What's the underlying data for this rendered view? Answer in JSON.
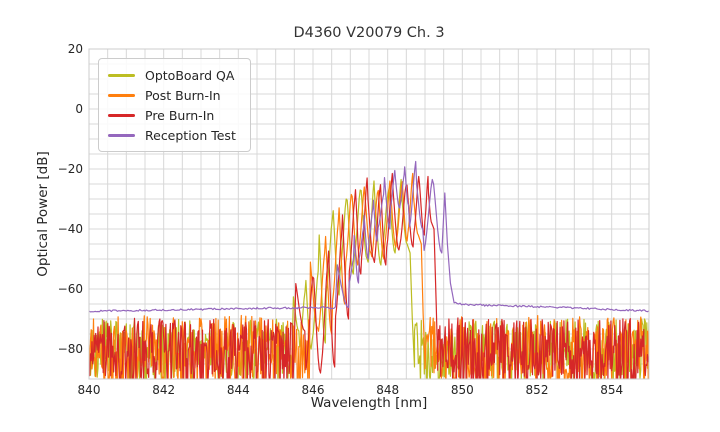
{
  "chart_data": {
    "type": "line",
    "title": "D4360 V20079 Ch. 3",
    "xlabel": "Wavelength [nm]",
    "ylabel": "Optical Power [dB]",
    "xlim": [
      840,
      855
    ],
    "ylim": [
      -90,
      20
    ],
    "xticks": [
      840,
      842,
      844,
      846,
      848,
      850,
      852,
      854
    ],
    "yticks": [
      20,
      0,
      -20,
      -40,
      -60,
      -80
    ],
    "x_minor_step": 0.5,
    "y_minor_step": 5,
    "grid": true,
    "grid_color": "#d8d8d8",
    "spine_color": "#cccccc",
    "legend_position": "upper left",
    "series": [
      {
        "name": "OptoBoard QA",
        "color": "#bcbd22",
        "left_noise": [
          840,
          845.45
        ],
        "right_noise": [
          848.72,
          855
        ],
        "noise_top": -70,
        "noise_spread": 22,
        "rise_from": [
          845.45,
          -74
        ],
        "peaks": [
          [
            845.62,
            -61
          ],
          [
            845.95,
            -54
          ],
          [
            846.33,
            -37
          ],
          [
            846.7,
            -30
          ],
          [
            847.08,
            -27
          ],
          [
            847.45,
            -24
          ],
          [
            847.82,
            -28
          ],
          [
            848.2,
            -23.5
          ],
          [
            848.52,
            -28
          ]
        ],
        "valleys": [
          -80,
          -78,
          -62,
          -55,
          -50,
          -52,
          -48,
          -45
        ],
        "fall_to": [
          [
            848.6,
            -48
          ],
          [
            848.66,
            -70
          ],
          [
            848.72,
            -86
          ]
        ]
      },
      {
        "name": "Post Burn-In",
        "color": "#ff7f0e",
        "left_noise": [
          840,
          845.9
        ],
        "right_noise": [
          849.0,
          855
        ],
        "noise_top": -68.8,
        "noise_spread": 24,
        "rise_from": [
          845.9,
          -73
        ],
        "peaks": [
          [
            846.12,
            -48
          ],
          [
            846.5,
            -38
          ],
          [
            846.85,
            -28.5
          ],
          [
            847.2,
            -26
          ],
          [
            847.55,
            -28
          ],
          [
            847.9,
            -24
          ],
          [
            848.22,
            -26
          ],
          [
            848.52,
            -21.5
          ],
          [
            848.82,
            -27.5
          ]
        ],
        "valleys": [
          -75,
          -65,
          -52,
          -48,
          -50,
          -46,
          -44,
          -42
        ],
        "fall_to": [
          [
            848.9,
            -45
          ],
          [
            848.95,
            -68
          ],
          [
            849.0,
            -85
          ]
        ]
      },
      {
        "name": "Pre Burn-In",
        "color": "#d62728",
        "left_noise": [
          840,
          845.5
        ],
        "right_noise": [
          849.34,
          855
        ],
        "noise_top": -69.5,
        "noise_spread": 23.5,
        "rise_from": [
          845.5,
          -74
        ],
        "peaks": [
          [
            845.78,
            -56
          ],
          [
            846.2,
            -52
          ],
          [
            846.58,
            -42
          ],
          [
            846.95,
            -30.5
          ],
          [
            847.28,
            -23
          ],
          [
            847.62,
            -27.5
          ],
          [
            847.95,
            -21.5
          ],
          [
            848.3,
            -25.5
          ],
          [
            848.68,
            -22.5
          ],
          [
            848.98,
            -22.5
          ],
          [
            849.18,
            -27
          ]
        ],
        "valleys": [
          -88,
          -86,
          -70,
          -55,
          -50,
          -52,
          -47,
          -46,
          -42,
          -38
        ],
        "fall_to": [
          [
            849.24,
            -40
          ],
          [
            849.3,
            -65
          ],
          [
            849.34,
            -84
          ]
        ]
      },
      {
        "name": "Reception Test",
        "color": "#9467bd",
        "baseline_left": [
          [
            840,
            -67.4
          ],
          [
            841.5,
            -67.1
          ],
          [
            843,
            -66.8
          ],
          [
            844.5,
            -66.4
          ],
          [
            845.6,
            -66.3
          ],
          [
            846.6,
            -66.2
          ]
        ],
        "baseline_jitter": 0.3,
        "rise_from": [
          846.6,
          -66.2
        ],
        "peaks": [
          [
            846.95,
            -50
          ],
          [
            847.22,
            -40
          ],
          [
            847.48,
            -33.5
          ],
          [
            847.72,
            -28.5
          ],
          [
            848.06,
            -20.5
          ],
          [
            848.32,
            -22
          ],
          [
            848.56,
            -17.5
          ],
          [
            848.94,
            -23.5
          ],
          [
            849.45,
            -21.8
          ]
        ],
        "valleys": [
          -58,
          -50,
          -44,
          -40,
          -33,
          -32,
          -40,
          -48
        ],
        "fall_to": [
          [
            849.53,
            -28
          ],
          [
            849.6,
            -45
          ],
          [
            849.68,
            -58
          ],
          [
            849.78,
            -64.6
          ]
        ],
        "baseline_right": [
          [
            849.78,
            -64.6
          ],
          [
            850.05,
            -65.1
          ],
          [
            850.6,
            -65.4
          ],
          [
            851.5,
            -65.7
          ],
          [
            853,
            -66.3
          ],
          [
            855,
            -67.3
          ]
        ]
      }
    ]
  }
}
